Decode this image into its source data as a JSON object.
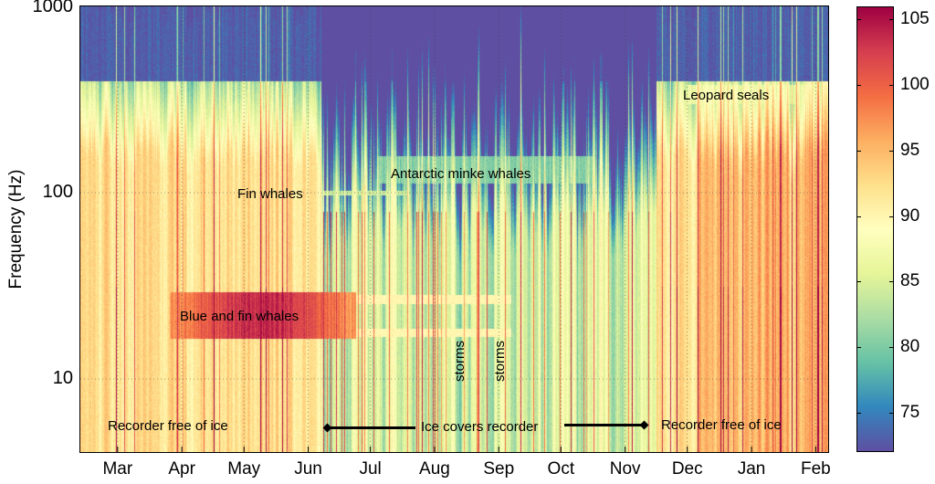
{
  "chart_data": {
    "type": "heatmap",
    "subtype": "spectrogram",
    "ylabel": "Frequency (Hz)",
    "xlabel": "",
    "yscale": "log",
    "yticks": [
      1000,
      100,
      10
    ],
    "ytick_labels": [
      "1000",
      "100",
      "10"
    ],
    "ylim": [
      4,
      1000
    ],
    "xtick_labels": [
      "Mar",
      "Apr",
      "May",
      "Jun",
      "Jul",
      "Aug",
      "Sep",
      "Oct",
      "Nov",
      "Dec",
      "Jan",
      "Feb"
    ],
    "grid": true,
    "colormap": "Spectral",
    "colors": [
      "#5e4fa2",
      "#3288bd",
      "#66c2a5",
      "#abdda4",
      "#e6f598",
      "#ffffbf",
      "#fee08b",
      "#fdae61",
      "#f46d43",
      "#d53e4f",
      "#9e0142"
    ],
    "colorbar": {
      "range": [
        72,
        106
      ],
      "ticks": [
        105,
        100,
        95,
        90,
        85,
        80,
        75
      ],
      "tick_labels": [
        "105",
        "100",
        "95",
        "90",
        "85",
        "80",
        "75"
      ]
    },
    "annotations": {
      "leopard_seals": "Leopard seals",
      "minke": "Antarctic minke whales",
      "fin": "Fin whales",
      "blue_fin": "Blue and fin whales",
      "storms1": "storms",
      "storms2": "storms",
      "free1": "Recorder free of ice",
      "ice": "Ice covers recorder",
      "free2": "Recorder free of ice"
    }
  }
}
